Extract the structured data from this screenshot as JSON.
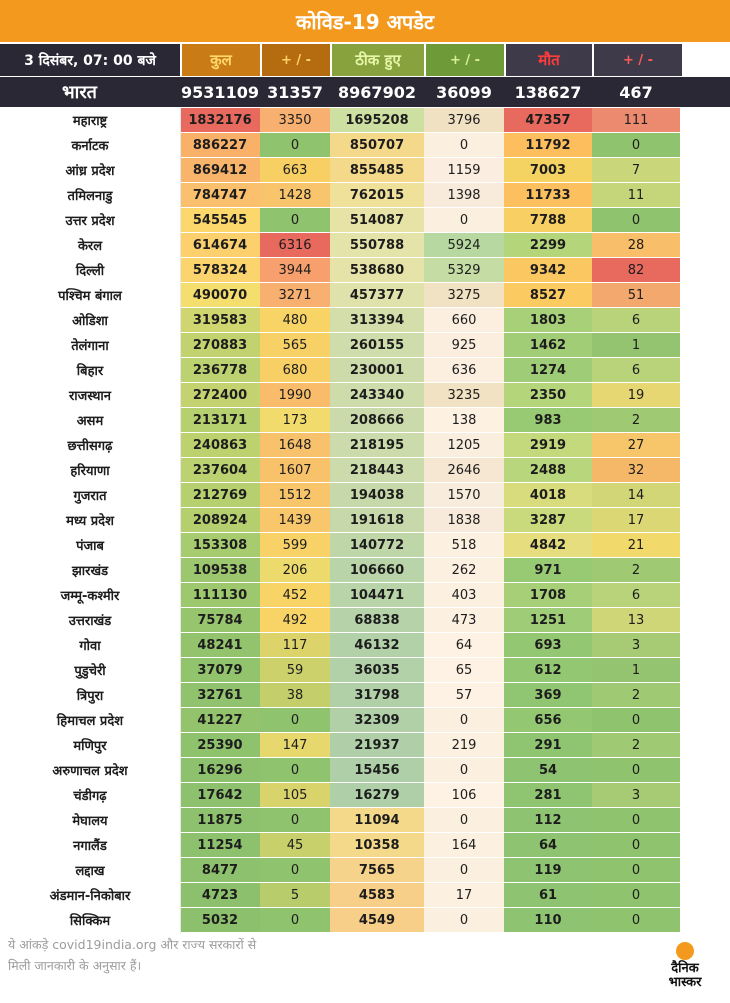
{
  "title": "कोविड-19 अपडेट",
  "header": {
    "date": "3 दिसंबर, 07: 00 बजे",
    "total": "कुल",
    "pm1": "+ / -",
    "recovered": "ठीक हुए",
    "pm2": "+ / -",
    "deaths": "मौत",
    "pm3": "+ / -"
  },
  "national": {
    "name": "भारत",
    "total": "9531109",
    "total_change": "31357",
    "recovered": "8967902",
    "recovered_change": "36099",
    "deaths": "138627",
    "deaths_change": "467"
  },
  "rows": [
    {
      "state": "महाराष्ट्र",
      "total": "1832176",
      "tc": "3350",
      "rec": "1695208",
      "rc": "3796",
      "deaths": "47357",
      "dc": "111",
      "col": [
        "#e86a5e",
        "#f7b06f",
        "#cde0a2",
        "#f0e1c3",
        "#e86a5e",
        "#ec8a70"
      ]
    },
    {
      "state": "कर्नाटक",
      "total": "886227",
      "tc": "0",
      "rec": "850707",
      "rc": "0",
      "deaths": "11792",
      "dc": "0",
      "col": [
        "#f9b16a",
        "#8fc36d",
        "#f5d98a",
        "#fbf0df",
        "#fdbf5e",
        "#8fc36d"
      ]
    },
    {
      "state": "आंध्र प्रदेश",
      "total": "869412",
      "tc": "663",
      "rec": "855485",
      "rc": "1159",
      "deaths": "7003",
      "dc": "7",
      "col": [
        "#f9b46b",
        "#f7cf63",
        "#f5d98a",
        "#fbeee0",
        "#f5d362",
        "#c9d77a"
      ]
    },
    {
      "state": "तमिलनाडु",
      "total": "784747",
      "tc": "1428",
      "rec": "762015",
      "rc": "1398",
      "deaths": "11733",
      "dc": "11",
      "col": [
        "#fac06d",
        "#f8c56c",
        "#efe09a",
        "#f8ebdc",
        "#fdc05f",
        "#c5d57a"
      ]
    },
    {
      "state": "उत्तर प्रदेश",
      "total": "545545",
      "tc": "0",
      "rec": "514087",
      "rc": "0",
      "deaths": "7788",
      "dc": "0",
      "col": [
        "#fcd76c",
        "#8fc36d",
        "#e7e3a6",
        "#fbf0df",
        "#f8cf62",
        "#8fc36d"
      ]
    },
    {
      "state": "केरल",
      "total": "614674",
      "tc": "6316",
      "rec": "550788",
      "rc": "5924",
      "deaths": "2299",
      "dc": "28",
      "col": [
        "#fbd06d",
        "#e86a5e",
        "#e4e3aa",
        "#b7d8a0",
        "#b5d57b",
        "#f9be69"
      ]
    },
    {
      "state": "दिल्ली",
      "total": "578324",
      "tc": "3944",
      "rec": "538680",
      "rc": "5329",
      "deaths": "9342",
      "dc": "82",
      "col": [
        "#fbd46d",
        "#f7a06d",
        "#e5e3a8",
        "#c5dda4",
        "#fbc760",
        "#e86a5e"
      ]
    },
    {
      "state": "पश्चिम बंगाल",
      "total": "490070",
      "tc": "3271",
      "rec": "457377",
      "rc": "3275",
      "deaths": "8527",
      "dc": "51",
      "col": [
        "#f4de6e",
        "#f7b06f",
        "#e0e2ab",
        "#f0e2c2",
        "#fbca60",
        "#f3a96d"
      ]
    },
    {
      "state": "ओडिशा",
      "total": "319583",
      "tc": "480",
      "rec": "313394",
      "rc": "660",
      "deaths": "1803",
      "dc": "6",
      "col": [
        "#cfd670",
        "#f8d466",
        "#d4deaa",
        "#fcefe0",
        "#a8d078",
        "#b8d37a"
      ]
    },
    {
      "state": "तेलंगाना",
      "total": "270883",
      "tc": "565",
      "rec": "260155",
      "rc": "925",
      "deaths": "1462",
      "dc": "1",
      "col": [
        "#c2d26f",
        "#f8d166",
        "#cfdcab",
        "#fbeedf",
        "#a2cd77",
        "#94c46f"
      ]
    },
    {
      "state": "बिहार",
      "total": "236778",
      "tc": "680",
      "rec": "230001",
      "rc": "636",
      "deaths": "1274",
      "dc": "6",
      "col": [
        "#bcd16f",
        "#f8cf65",
        "#cddbab",
        "#fcefe0",
        "#9fcc76",
        "#b8d37a"
      ]
    },
    {
      "state": "राजस्थान",
      "total": "272400",
      "tc": "1990",
      "rec": "243340",
      "rc": "3235",
      "deaths": "2350",
      "dc": "19",
      "col": [
        "#c4d370",
        "#f8bc6a",
        "#cedcab",
        "#f0e2c2",
        "#b5d57b",
        "#e7d772"
      ]
    },
    {
      "state": "असम",
      "total": "213171",
      "tc": "173",
      "rec": "208666",
      "rc": "138",
      "deaths": "983",
      "dc": "2",
      "col": [
        "#b6cf6f",
        "#f0db6c",
        "#cadaab",
        "#fdf1e2",
        "#98c973",
        "#a0c973"
      ]
    },
    {
      "state": "छत्तीसगढ़",
      "total": "240863",
      "tc": "1648",
      "rec": "218195",
      "rc": "1205",
      "deaths": "2919",
      "dc": "27",
      "col": [
        "#bdd16f",
        "#f8c16b",
        "#cbdbab",
        "#faeedf",
        "#c4d97c",
        "#f7c66a"
      ]
    },
    {
      "state": "हरियाणा",
      "total": "237604",
      "tc": "1607",
      "rec": "218443",
      "rc": "2646",
      "deaths": "2488",
      "dc": "32",
      "col": [
        "#bcd16f",
        "#f8c26b",
        "#cbdbab",
        "#f5e7d2",
        "#b8d67b",
        "#f5b868"
      ]
    },
    {
      "state": "गुजरात",
      "total": "212769",
      "tc": "1512",
      "rec": "194038",
      "rc": "1570",
      "deaths": "4018",
      "dc": "14",
      "col": [
        "#b6cf6f",
        "#f8c56b",
        "#c7d9aa",
        "#f8ecdc",
        "#d8dc7c",
        "#d3d677"
      ]
    },
    {
      "state": "मध्य प्रदेश",
      "total": "208924",
      "tc": "1439",
      "rec": "191618",
      "rc": "1838",
      "deaths": "3287",
      "dc": "17",
      "col": [
        "#b5cf6f",
        "#f8c66b",
        "#c7d9aa",
        "#f7eada",
        "#c9da7c",
        "#dcd775"
      ]
    },
    {
      "state": "पंजाब",
      "total": "153308",
      "tc": "599",
      "rec": "140772",
      "rc": "518",
      "deaths": "4842",
      "dc": "21",
      "col": [
        "#a7cb6f",
        "#f8d266",
        "#bfd6a9",
        "#fcf0e0",
        "#e5dd7e",
        "#f2d96b"
      ]
    },
    {
      "state": "झारखंड",
      "total": "109538",
      "tc": "206",
      "rec": "106660",
      "rc": "262",
      "deaths": "971",
      "dc": "2",
      "col": [
        "#9dc76e",
        "#edda6c",
        "#b9d4a8",
        "#fcf0e1",
        "#98c973",
        "#a0c973"
      ]
    },
    {
      "state": "जम्मू-कश्मीर",
      "total": "111130",
      "tc": "452",
      "rec": "104471",
      "rc": "403",
      "deaths": "1708",
      "dc": "6",
      "col": [
        "#9dc86e",
        "#f8d466",
        "#b9d4a8",
        "#fcf0e0",
        "#a6cf78",
        "#b8d37a"
      ]
    },
    {
      "state": "उत्तराखंड",
      "total": "75784",
      "tc": "492",
      "rec": "68838",
      "rc": "473",
      "deaths": "1251",
      "dc": "13",
      "col": [
        "#97c56e",
        "#f8d466",
        "#b5d2a8",
        "#fcf0e0",
        "#9fcc76",
        "#cfd677"
      ]
    },
    {
      "state": "गोवा",
      "total": "48241",
      "tc": "117",
      "rec": "46132",
      "rc": "64",
      "deaths": "693",
      "dc": "3",
      "col": [
        "#93c36d",
        "#dcd46b",
        "#b3d1a8",
        "#fdf2e3",
        "#94c772",
        "#a6cb74"
      ]
    },
    {
      "state": "पुडुचेरी",
      "total": "37079",
      "tc": "59",
      "rec": "36035",
      "rc": "65",
      "deaths": "612",
      "dc": "1",
      "col": [
        "#92c36d",
        "#cdd16b",
        "#b2d1a8",
        "#fdf2e3",
        "#93c772",
        "#94c46f"
      ]
    },
    {
      "state": "त्रिपुरा",
      "total": "32761",
      "tc": "38",
      "rec": "31798",
      "rc": "57",
      "deaths": "369",
      "dc": "2",
      "col": [
        "#91c26d",
        "#c4cf6b",
        "#b2d0a8",
        "#fdf2e3",
        "#90c571",
        "#a0c973"
      ]
    },
    {
      "state": "हिमाचल प्रदेश",
      "total": "41227",
      "tc": "0",
      "rec": "32309",
      "rc": "0",
      "deaths": "656",
      "dc": "0",
      "col": [
        "#93c36d",
        "#8fc36d",
        "#b2d0a8",
        "#fbf0df",
        "#94c772",
        "#8fc36d"
      ]
    },
    {
      "state": "मणिपुर",
      "total": "25390",
      "tc": "147",
      "rec": "21937",
      "rc": "219",
      "deaths": "291",
      "dc": "2",
      "col": [
        "#8fc26d",
        "#e6d86c",
        "#b0cfa8",
        "#fcf0e1",
        "#8fc571",
        "#a0c973"
      ]
    },
    {
      "state": "अरुणाचल प्रदेश",
      "total": "16296",
      "tc": "0",
      "rec": "15456",
      "rc": "0",
      "deaths": "54",
      "dc": "0",
      "col": [
        "#8ec16d",
        "#8fc36d",
        "#afcfa8",
        "#fbf0df",
        "#8ec471",
        "#8fc36d"
      ]
    },
    {
      "state": "चंडीगढ़",
      "total": "17642",
      "tc": "105",
      "rec": "16279",
      "rc": "106",
      "deaths": "281",
      "dc": "3",
      "col": [
        "#8ec16d",
        "#d8d36b",
        "#afcfa8",
        "#fdf2e3",
        "#8fc571",
        "#a6cb74"
      ]
    },
    {
      "state": "मेघालय",
      "total": "11875",
      "tc": "0",
      "rec": "11094",
      "rc": "0",
      "deaths": "112",
      "dc": "0",
      "col": [
        "#8dc16d",
        "#8fc36d",
        "#f5d98a",
        "#fbf0df",
        "#8ec471",
        "#8fc36d"
      ]
    },
    {
      "state": "नगालैंड",
      "total": "11254",
      "tc": "45",
      "rec": "10358",
      "rc": "164",
      "deaths": "64",
      "dc": "0",
      "col": [
        "#8dc16d",
        "#c7d06b",
        "#f5d98a",
        "#fcf0e1",
        "#8ec471",
        "#8fc36d"
      ]
    },
    {
      "state": "लद्दाख",
      "total": "8477",
      "tc": "0",
      "rec": "7565",
      "rc": "0",
      "deaths": "119",
      "dc": "0",
      "col": [
        "#8dc16d",
        "#8fc36d",
        "#f6d38a",
        "#fbf0df",
        "#8ec471",
        "#8fc36d"
      ]
    },
    {
      "state": "अंडमान-निकोबार",
      "total": "4723",
      "tc": "5",
      "rec": "4583",
      "rc": "17",
      "deaths": "61",
      "dc": "0",
      "col": [
        "#8cc06d",
        "#b8cc6b",
        "#f7cf88",
        "#fcf0e1",
        "#8ec471",
        "#8fc36d"
      ]
    },
    {
      "state": "सिक्किम",
      "total": "5032",
      "tc": "0",
      "rec": "4549",
      "rc": "0",
      "deaths": "110",
      "dc": "0",
      "col": [
        "#8cc06d",
        "#8fc36d",
        "#f7cf88",
        "#fbf0df",
        "#8ec471",
        "#8fc36d"
      ]
    }
  ],
  "footer": {
    "line1": "ये आंकड़े covid19india.org और राज्य सरकारों से",
    "line2": "मिली जानकारी के अनुसार हैं।"
  },
  "logo": {
    "line1": "दैनिक",
    "line2": "भास्कर",
    "accent": "#f39a1e"
  }
}
